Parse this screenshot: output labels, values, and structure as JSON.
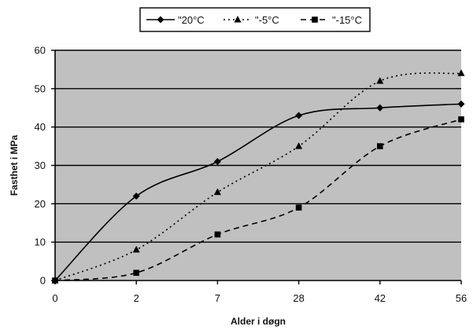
{
  "chart_data": {
    "type": "line",
    "title": "",
    "xlabel": "Alder i døgn",
    "ylabel": "Fasthet i MPa",
    "categories": [
      "0",
      "2",
      "7",
      "28",
      "42",
      "56"
    ],
    "ylim": [
      0,
      60
    ],
    "ytick_labels": [
      "0",
      "10",
      "20",
      "30",
      "40",
      "50",
      "60"
    ],
    "grid": true,
    "legend_position": "top-center",
    "plot_background": "#c0c0c0",
    "series": [
      {
        "name": "\"20°C",
        "values": [
          0,
          22,
          31,
          43,
          45,
          46
        ],
        "marker": "diamond",
        "line_style": "solid",
        "color": "#000000"
      },
      {
        "name": "\"-5°C",
        "values": [
          0,
          8,
          23,
          35,
          52,
          54
        ],
        "marker": "triangle",
        "line_style": "dotted",
        "color": "#000000"
      },
      {
        "name": "\"-15°C",
        "values": [
          0,
          2,
          12,
          19,
          35,
          42
        ],
        "marker": "square",
        "line_style": "dashed",
        "color": "#000000"
      }
    ]
  }
}
